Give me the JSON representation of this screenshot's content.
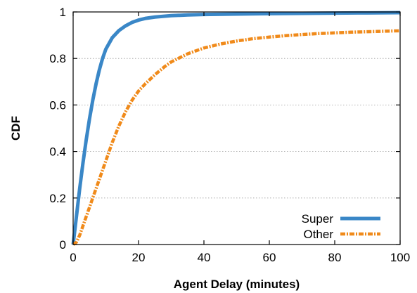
{
  "chart_data": {
    "type": "line",
    "title": "",
    "xlabel": "Agent Delay (minutes)",
    "ylabel": "CDF",
    "xlim": [
      0,
      100
    ],
    "ylim": [
      0,
      1
    ],
    "xticks": [
      0,
      20,
      40,
      60,
      80,
      100
    ],
    "yticks": [
      0,
      0.2,
      0.4,
      0.6,
      0.8,
      1
    ],
    "ytick_labels": [
      "0",
      "0.2",
      "0.4",
      "0.6",
      "0.8",
      "1"
    ],
    "grid": "horizontal dotted",
    "legend_position": "bottom-right",
    "series": [
      {
        "name": "Super",
        "color": "#3a87c7",
        "style": "solid",
        "x": [
          0,
          1,
          2,
          3,
          4,
          5,
          6,
          7,
          8,
          9,
          10,
          12,
          14,
          16,
          18,
          20,
          22,
          25,
          30,
          35,
          40,
          50,
          60,
          70,
          80,
          90,
          100
        ],
        "y": [
          0,
          0.12,
          0.24,
          0.35,
          0.45,
          0.54,
          0.62,
          0.69,
          0.75,
          0.8,
          0.84,
          0.89,
          0.92,
          0.94,
          0.955,
          0.965,
          0.972,
          0.978,
          0.984,
          0.987,
          0.989,
          0.991,
          0.993,
          0.994,
          0.995,
          0.996,
          0.997
        ]
      },
      {
        "name": "Other",
        "color": "#f08a1a",
        "style": "dashed",
        "x": [
          0,
          1,
          2,
          3,
          4,
          6,
          8,
          10,
          12,
          14,
          16,
          18,
          20,
          22,
          25,
          28,
          30,
          35,
          40,
          45,
          50,
          55,
          60,
          65,
          70,
          75,
          80,
          85,
          90,
          95,
          100
        ],
        "y": [
          0,
          0.01,
          0.04,
          0.08,
          0.12,
          0.2,
          0.28,
          0.36,
          0.44,
          0.51,
          0.57,
          0.62,
          0.66,
          0.69,
          0.73,
          0.765,
          0.785,
          0.82,
          0.845,
          0.862,
          0.875,
          0.885,
          0.892,
          0.898,
          0.903,
          0.907,
          0.91,
          0.913,
          0.915,
          0.917,
          0.919
        ]
      }
    ]
  }
}
